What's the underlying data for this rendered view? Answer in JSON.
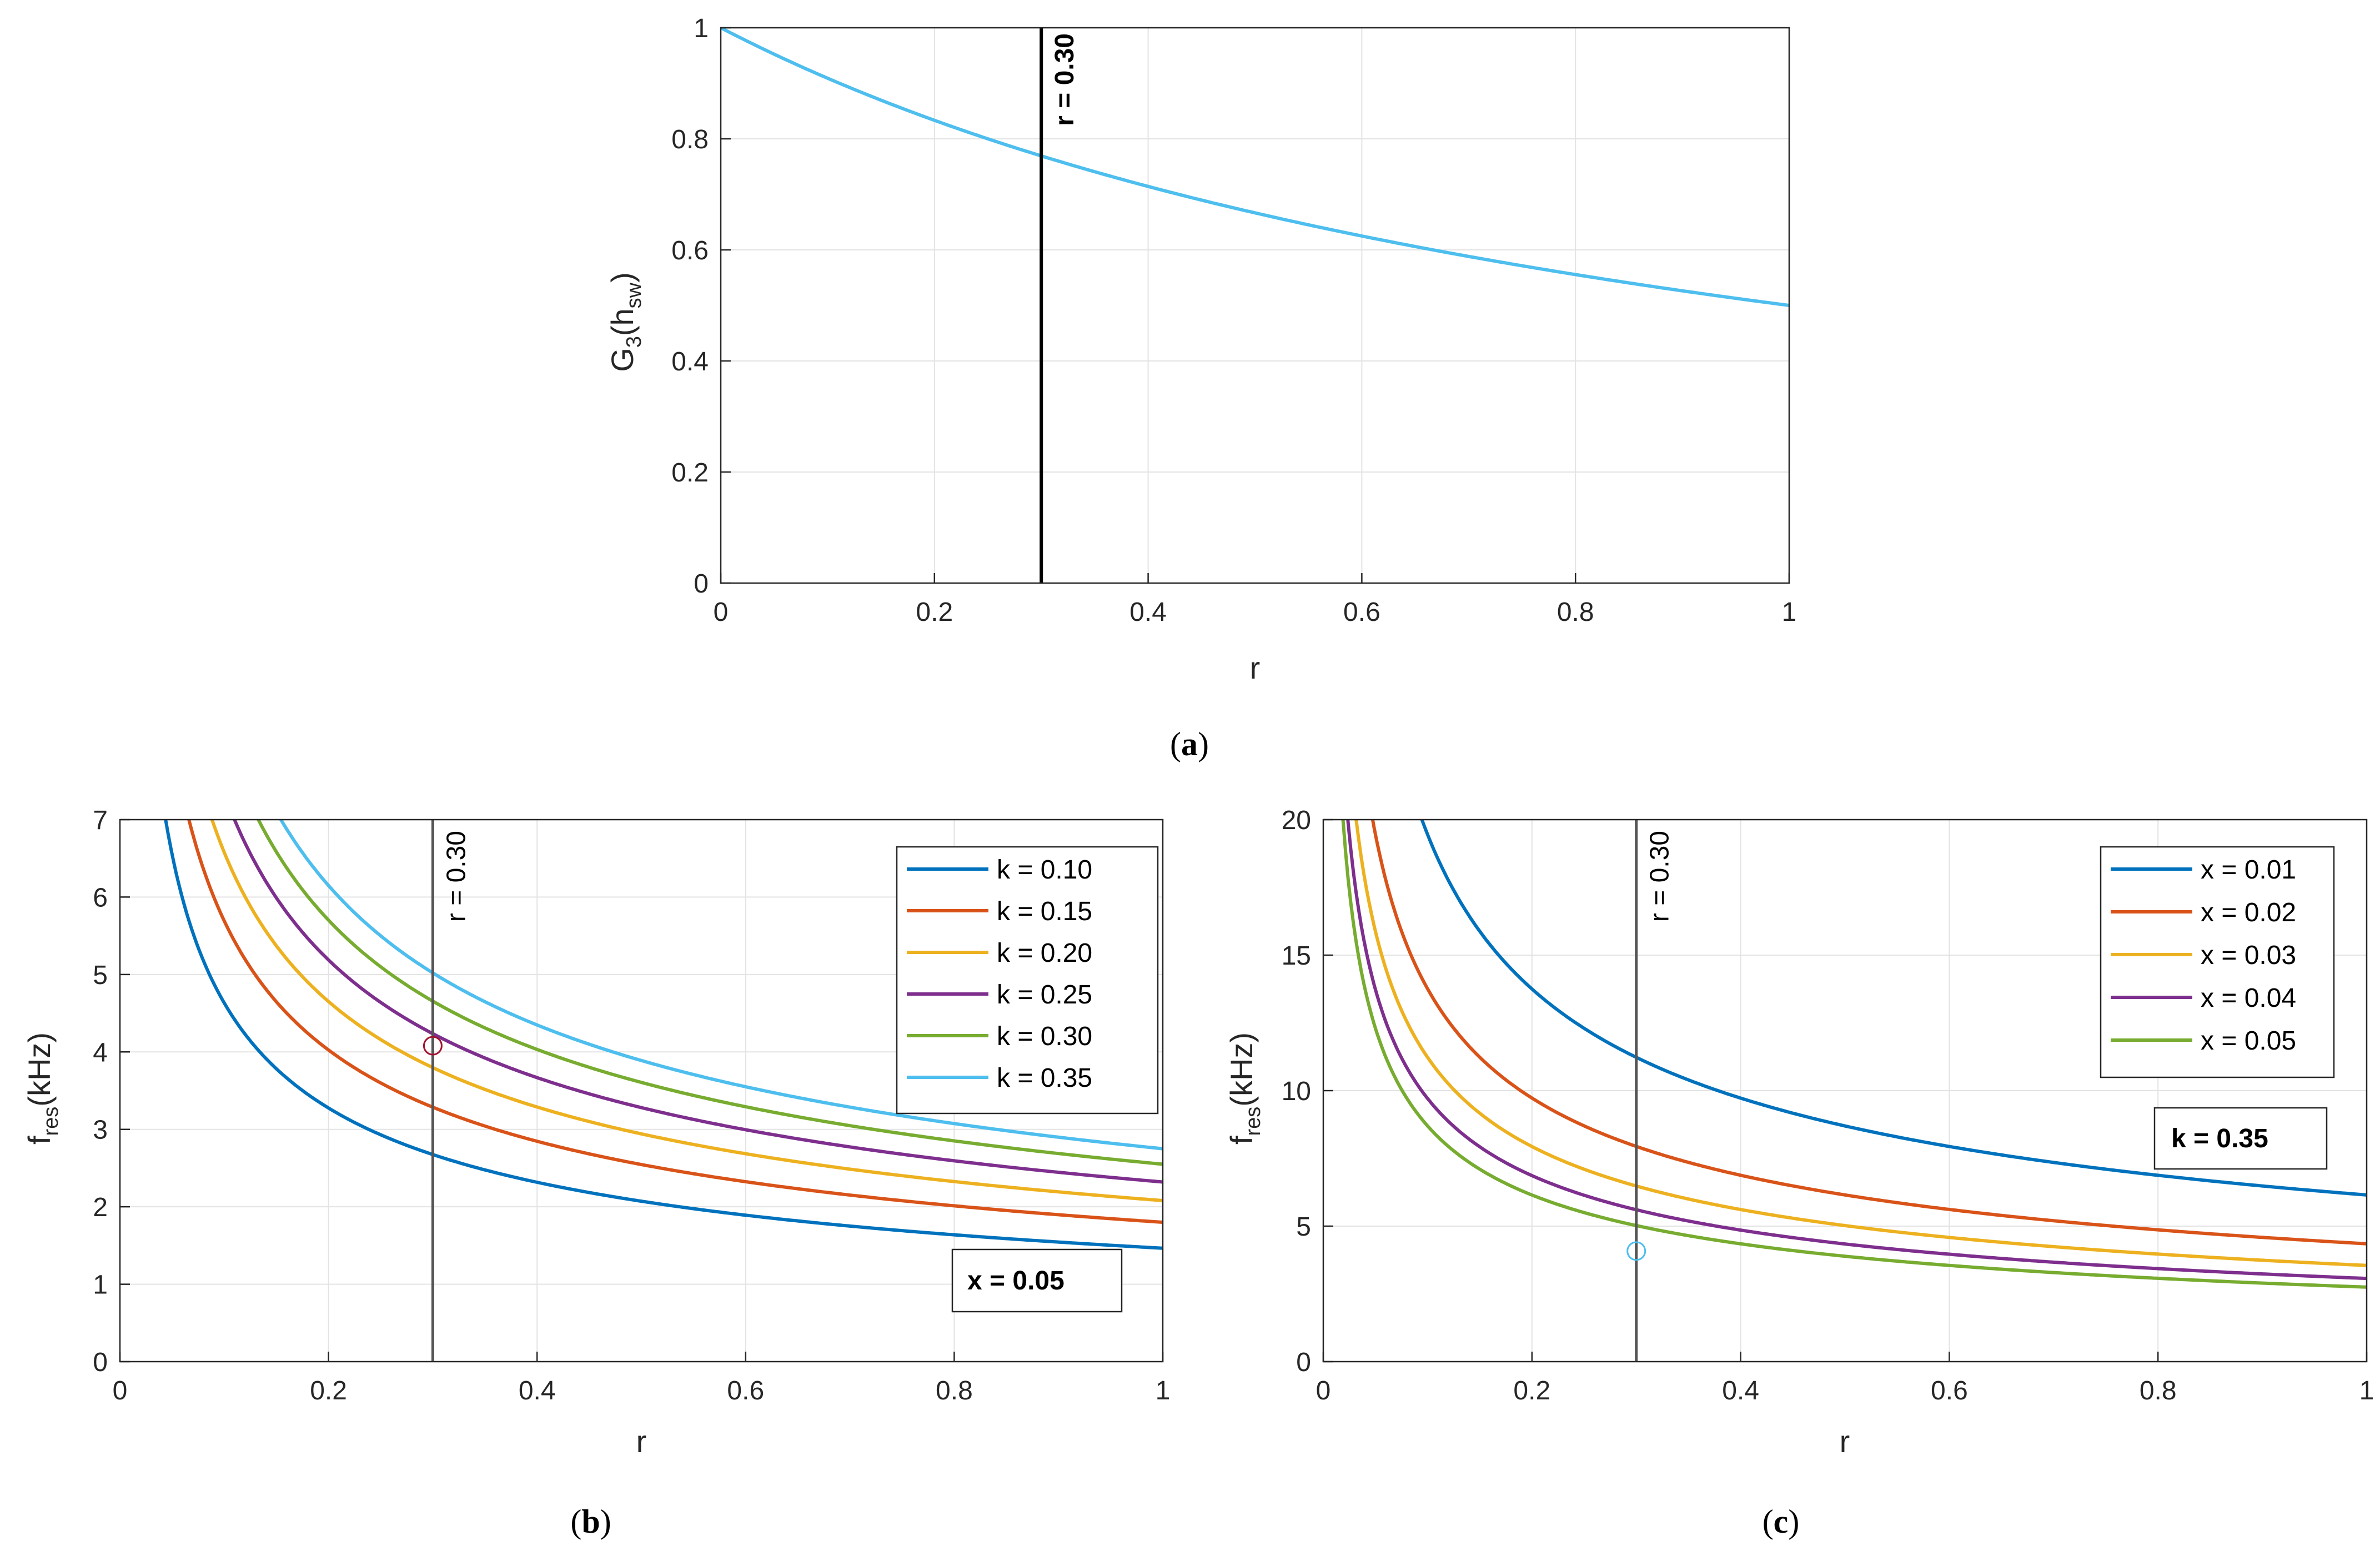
{
  "chart_data": [
    {
      "id": "a",
      "type": "line",
      "caption": "a",
      "xlabel": "r",
      "ylabel": "G",
      "ylabel_sub1": "3",
      "ylabel_mid": "(h",
      "ylabel_sub2": "sw",
      "ylabel_end": ")",
      "xlim": [
        0,
        1
      ],
      "ylim": [
        0,
        1
      ],
      "xticks": [
        0,
        0.2,
        0.4,
        0.6,
        0.8,
        1
      ],
      "xtick_labels": [
        "0",
        "0.2",
        "0.4",
        "0.6",
        "0.8",
        "1"
      ],
      "yticks": [
        0,
        0.2,
        0.4,
        0.6,
        0.8,
        1
      ],
      "ytick_labels": [
        "0",
        "0.2",
        "0.4",
        "0.6",
        "0.8",
        "1"
      ],
      "grid": true,
      "series": [
        {
          "name": "G3(hsw)",
          "color": "#4dbeee",
          "x": [
            0,
            0.1,
            0.2,
            0.3,
            0.4,
            0.5,
            0.6,
            0.7,
            0.8,
            0.9,
            1.0
          ],
          "y": [
            1.0,
            0.909,
            0.833,
            0.769,
            0.714,
            0.667,
            0.625,
            0.588,
            0.556,
            0.526,
            0.5
          ]
        }
      ],
      "vline": {
        "x": 0.3,
        "label": "r = 0.30",
        "color": "#000000"
      }
    },
    {
      "id": "b",
      "type": "line",
      "caption": "b",
      "xlabel": "r",
      "ylabel": "f",
      "ylabel_sub1": "res",
      "ylabel_mid": "(kHz)",
      "xlim": [
        0,
        1
      ],
      "ylim": [
        0,
        7
      ],
      "xticks": [
        0,
        0.2,
        0.4,
        0.6,
        0.8,
        1
      ],
      "xtick_labels": [
        "0",
        "0.2",
        "0.4",
        "0.6",
        "0.8",
        "1"
      ],
      "yticks": [
        0,
        1,
        2,
        3,
        4,
        5,
        6,
        7
      ],
      "ytick_labels": [
        "0",
        "1",
        "2",
        "3",
        "4",
        "5",
        "6",
        "7"
      ],
      "grid": true,
      "legend_position": "top-right",
      "series": [
        {
          "name": "k = 0.10",
          "color": "#0072bd",
          "c": 1.465
        },
        {
          "name": "k = 0.15",
          "color": "#d95319",
          "c": 1.8
        },
        {
          "name": "k = 0.20",
          "color": "#edb120",
          "c": 2.08
        },
        {
          "name": "k = 0.25",
          "color": "#7e2f8e",
          "c": 2.32
        },
        {
          "name": "k = 0.30",
          "color": "#77ac30",
          "c": 2.55
        },
        {
          "name": "k = 0.35",
          "color": "#4dbeee",
          "c": 2.75
        }
      ],
      "annotation": "x = 0.05",
      "vline": {
        "x": 0.3,
        "label": "r = 0.30",
        "color": "#555555"
      },
      "marker": {
        "x": 0.3,
        "y": 4.08,
        "color": "#a2142f"
      }
    },
    {
      "id": "c",
      "type": "line",
      "caption": "c",
      "xlabel": "r",
      "ylabel": "f",
      "ylabel_sub1": "res",
      "ylabel_mid": "(kHz)",
      "xlim": [
        0,
        1
      ],
      "ylim": [
        0,
        20
      ],
      "xticks": [
        0,
        0.2,
        0.4,
        0.6,
        0.8,
        1
      ],
      "xtick_labels": [
        "0",
        "0.2",
        "0.4",
        "0.6",
        "0.8",
        "1"
      ],
      "yticks": [
        0,
        5,
        10,
        15,
        20
      ],
      "ytick_labels": [
        "0",
        "5",
        "10",
        "15",
        "20"
      ],
      "grid": true,
      "legend_position": "top-right",
      "series": [
        {
          "name": "x = 0.01",
          "color": "#0072bd",
          "c": 6.15
        },
        {
          "name": "x = 0.02",
          "color": "#d95319",
          "c": 4.35
        },
        {
          "name": "x = 0.03",
          "color": "#edb120",
          "c": 3.55
        },
        {
          "name": "x = 0.04",
          "color": "#7e2f8e",
          "c": 3.07
        },
        {
          "name": "x = 0.05",
          "color": "#77ac30",
          "c": 2.75
        }
      ],
      "annotation": "k = 0.35",
      "vline": {
        "x": 0.3,
        "label": "r = 0.30",
        "color": "#555555"
      },
      "marker": {
        "x": 0.3,
        "y": 4.08,
        "color": "#4dbeee"
      }
    }
  ]
}
